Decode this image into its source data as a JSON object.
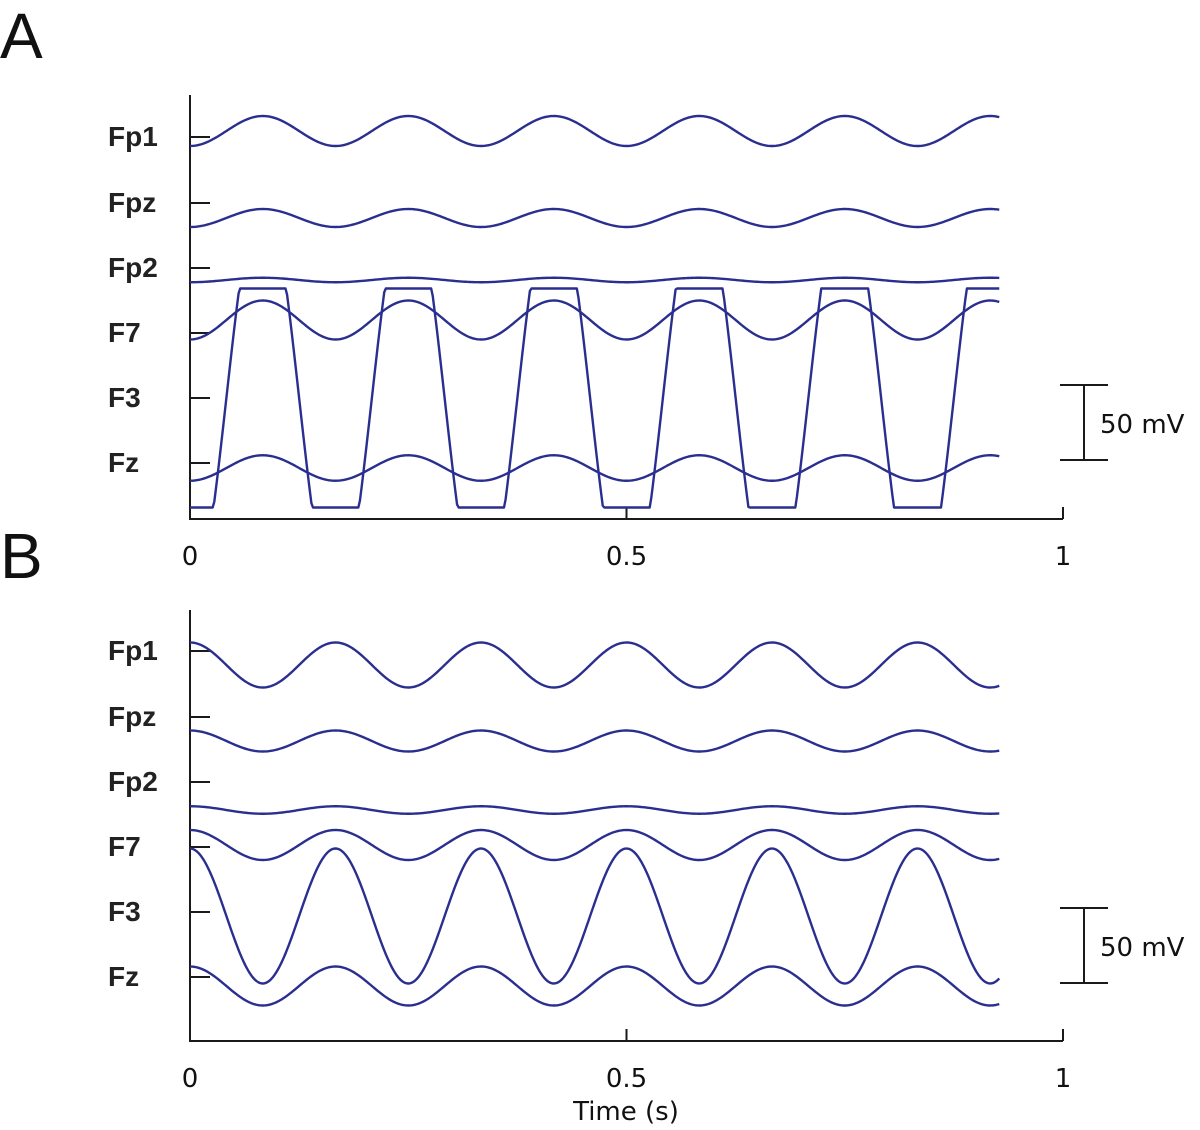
{
  "colors": {
    "trace": "#2a2f8f",
    "axis": "#1a1a1a"
  },
  "chart_data": [
    {
      "panel": "A",
      "type": "line",
      "xlabel": "",
      "xlim": [
        0,
        1
      ],
      "xticks": [
        0,
        0.5,
        1
      ],
      "xtick_labels": [
        "0",
        "0.5",
        "1"
      ],
      "channels": [
        "Fp1",
        "Fpz",
        "Fp2",
        "F7",
        "F3",
        "Fz"
      ],
      "scale_bar": {
        "label": "50 mV",
        "value_mV": 50
      },
      "grid": false,
      "series": [
        {
          "name": "Fp1",
          "waveform": "sine",
          "frequency_hz": 6,
          "amplitude_mV": 10,
          "phase_deg": -90
        },
        {
          "name": "Fpz",
          "waveform": "sine",
          "frequency_hz": 6,
          "amplitude_mV": 6,
          "phase_deg": -90
        },
        {
          "name": "Fp2",
          "waveform": "sine",
          "frequency_hz": 6,
          "amplitude_mV": 1.5,
          "phase_deg": -90
        },
        {
          "name": "F7",
          "waveform": "sine",
          "frequency_hz": 6,
          "amplitude_mV": 13,
          "phase_deg": -90
        },
        {
          "name": "F3",
          "waveform": "clipped-sine",
          "frequency_hz": 6,
          "amplitude_mV": 73,
          "phase_deg": -90,
          "clip_mV": [
            -73,
            73
          ]
        },
        {
          "name": "Fz",
          "waveform": "sine",
          "frequency_hz": 6,
          "amplitude_mV": 8.5,
          "phase_deg": -90
        }
      ]
    },
    {
      "panel": "B",
      "type": "line",
      "xlabel": "Time (s)",
      "xlim": [
        0,
        1
      ],
      "xticks": [
        0,
        0.5,
        1
      ],
      "xtick_labels": [
        "0",
        "0.5",
        "1"
      ],
      "channels": [
        "Fp1",
        "Fpz",
        "Fp2",
        "F7",
        "F3",
        "Fz"
      ],
      "scale_bar": {
        "label": "50 mV",
        "value_mV": 50
      },
      "grid": false,
      "series": [
        {
          "name": "Fp1",
          "waveform": "sine",
          "frequency_hz": 6,
          "amplitude_mV": 15,
          "phase_deg": 90
        },
        {
          "name": "Fpz",
          "waveform": "sine",
          "frequency_hz": 6,
          "amplitude_mV": 7,
          "phase_deg": 90
        },
        {
          "name": "Fp2",
          "waveform": "sine",
          "frequency_hz": 6,
          "amplitude_mV": 2.5,
          "phase_deg": 90
        },
        {
          "name": "F7",
          "waveform": "sine",
          "frequency_hz": 6,
          "amplitude_mV": 10,
          "phase_deg": 90
        },
        {
          "name": "F3",
          "waveform": "sine",
          "frequency_hz": 6,
          "amplitude_mV": 45,
          "phase_deg": 90
        },
        {
          "name": "Fz",
          "waveform": "sine",
          "frequency_hz": 6,
          "amplitude_mV": 13,
          "phase_deg": 90
        }
      ]
    }
  ]
}
